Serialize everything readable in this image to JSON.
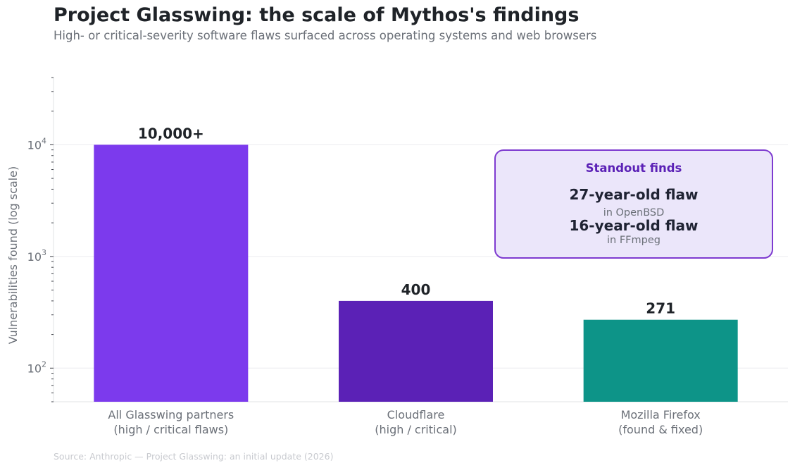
{
  "title": "Project Glasswing: the scale of Mythos's findings",
  "subtitle": "High- or critical-severity software flaws surfaced across operating systems and web browsers",
  "source": "Source: Anthropic — Project Glasswing: an initial update (2026)",
  "colors": {
    "bar_all": "#7c3aed",
    "bar_cloudflare": "#5b21b6",
    "bar_firefox": "#0d9488",
    "callout_border": "#7e3bd0",
    "callout_fill": "#ebe6fa",
    "callout_title": "#5b21b6"
  },
  "callout": {
    "title": "Standout finds",
    "items": [
      {
        "headline": "27-year-old flaw",
        "detail": "in OpenBSD"
      },
      {
        "headline": "16-year-old flaw",
        "detail": "in FFmpeg"
      }
    ]
  },
  "chart_data": {
    "type": "bar",
    "title": "Project Glasswing: the scale of Mythos's findings",
    "subtitle": "High- or critical-severity software flaws surfaced across operating systems and web browsers",
    "ylabel": "Vulnerabilities found (log scale)",
    "xlabel": "",
    "yscale": "log",
    "ylim": [
      50,
      40000
    ],
    "yticks": [
      {
        "value": 100,
        "base": "10",
        "exp": "2"
      },
      {
        "value": 1000,
        "base": "10",
        "exp": "3"
      },
      {
        "value": 10000,
        "base": "10",
        "exp": "4"
      }
    ],
    "grid": "horizontal",
    "categories": [
      [
        "All Glasswing partners",
        "(high / critical flaws)"
      ],
      [
        "Cloudflare",
        "(high / critical)"
      ],
      [
        "Mozilla Firefox",
        "(found & fixed)"
      ]
    ],
    "values": [
      10000,
      400,
      271
    ],
    "data_labels": [
      "10,000+",
      "400",
      "271"
    ],
    "bar_colors": [
      "#7c3aed",
      "#5b21b6",
      "#0d9488"
    ]
  }
}
